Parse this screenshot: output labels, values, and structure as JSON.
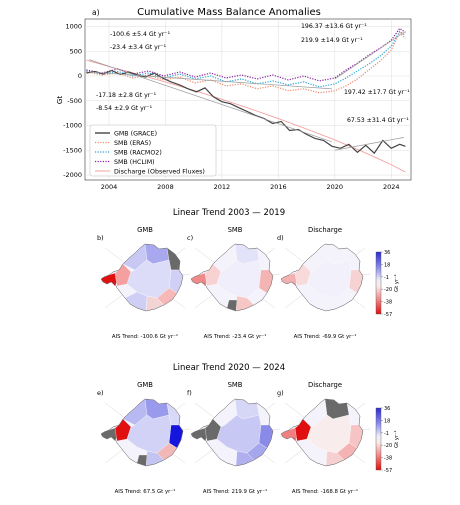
{
  "title": "Cumulative Mass Balance Anomalies",
  "panel_a_letter": "a)",
  "colors": {
    "grace": "#444444",
    "era5": "#f08a6a",
    "racmo2": "#2aa6d8",
    "hclim": "#8a1fa3",
    "discharge": "#f2a1a1",
    "cmap_pos": "#2a2ad0",
    "cmap_neg": "#e01010",
    "land_grey": "#6a6a6a"
  },
  "chart_data": {
    "type": "line",
    "title": "Cumulative Mass Balance Anomalies",
    "xlabel": "",
    "ylabel": "Gt",
    "xlim": [
      2002.3,
      2025.4
    ],
    "ylim": [
      -2100,
      1150
    ],
    "xticks": [
      2004,
      2008,
      2012,
      2016,
      2020,
      2024
    ],
    "yticks": [
      1000,
      500,
      0,
      -500,
      -1000,
      -1500,
      -2000
    ],
    "grid": true,
    "legend_position": "lower-left",
    "series": [
      {
        "key": "grace",
        "name": "GMB (GRACE)",
        "style": "solid",
        "x": [
          2002.4,
          2003.0,
          2003.6,
          2004.2,
          2004.8,
          2005.4,
          2006.0,
          2006.6,
          2007.2,
          2007.8,
          2008.4,
          2009.0,
          2009.6,
          2010.2,
          2010.8,
          2011.4,
          2012.0,
          2012.6,
          2013.2,
          2013.8,
          2014.4,
          2015.0,
          2015.6,
          2016.2,
          2016.8,
          2017.4,
          2018.0,
          2018.6,
          2019.2,
          2019.8,
          2020.4,
          2021.0,
          2021.6,
          2022.2,
          2022.8,
          2023.4,
          2024.0,
          2024.6,
          2025.0
        ],
        "y": [
          60,
          90,
          40,
          110,
          30,
          80,
          20,
          -20,
          60,
          -40,
          -120,
          -180,
          -260,
          -320,
          -240,
          -420,
          -520,
          -560,
          -640,
          -720,
          -800,
          -860,
          -960,
          -920,
          -1100,
          -1080,
          -1180,
          -1260,
          -1300,
          -1420,
          -1460,
          -1380,
          -1540,
          -1400,
          -1560,
          -1300,
          -1460,
          -1380,
          -1420
        ]
      },
      {
        "key": "era5",
        "name": "SMB (ERA5)",
        "style": "dotted",
        "x": [
          2002.4,
          2003.5,
          2004.6,
          2005.7,
          2006.8,
          2007.9,
          2009.0,
          2010.1,
          2011.2,
          2012.3,
          2013.4,
          2014.5,
          2015.6,
          2016.7,
          2017.8,
          2018.9,
          2020.0,
          2020.8,
          2021.6,
          2022.4,
          2023.2,
          2024.0,
          2024.6,
          2025.0
        ],
        "y": [
          80,
          20,
          60,
          -40,
          20,
          -80,
          -20,
          -140,
          -80,
          -200,
          -160,
          -260,
          -200,
          -300,
          -260,
          -340,
          -300,
          -200,
          -60,
          120,
          300,
          520,
          880,
          760
        ]
      },
      {
        "key": "racmo2",
        "name": "SMB (RACMO2)",
        "style": "dotted",
        "x": [
          2002.4,
          2003.5,
          2004.6,
          2005.7,
          2006.8,
          2007.9,
          2009.0,
          2010.1,
          2011.2,
          2012.3,
          2013.4,
          2014.5,
          2015.6,
          2016.7,
          2017.8,
          2018.9,
          2020.0,
          2020.8,
          2021.6,
          2022.4,
          2023.2,
          2024.0,
          2024.6,
          2025.0
        ],
        "y": [
          100,
          40,
          90,
          0,
          60,
          -40,
          40,
          -60,
          0,
          -120,
          -60,
          -160,
          -100,
          -180,
          -120,
          -220,
          -160,
          -40,
          100,
          240,
          400,
          600,
          900,
          820
        ]
      },
      {
        "key": "hclim",
        "name": "SMB (HCLIM)",
        "style": "dotted",
        "x": [
          2002.4,
          2003.5,
          2004.6,
          2005.7,
          2006.8,
          2007.9,
          2009.0,
          2010.1,
          2011.2,
          2012.3,
          2013.4,
          2014.5,
          2015.6,
          2016.7,
          2017.8,
          2018.9,
          2020.0,
          2020.8,
          2021.6,
          2022.4,
          2023.2,
          2024.0,
          2024.6,
          2025.0
        ],
        "y": [
          120,
          60,
          140,
          40,
          100,
          0,
          80,
          -20,
          60,
          -40,
          20,
          -60,
          20,
          -80,
          0,
          -100,
          -40,
          120,
          260,
          420,
          560,
          720,
          960,
          880
        ]
      },
      {
        "key": "discharge",
        "name": "Discharge (Observed Fluxes)",
        "style": "solid",
        "x": [
          2002.4,
          2004.0,
          2006.0,
          2008.0,
          2010.0,
          2012.0,
          2014.0,
          2016.0,
          2018.0,
          2020.0,
          2022.0,
          2024.0,
          2025.0
        ],
        "y": [
          320,
          190,
          40,
          -120,
          -290,
          -470,
          -660,
          -860,
          -1070,
          -1290,
          -1530,
          -1790,
          -1940
        ]
      }
    ],
    "trend_labels": [
      {
        "key": "t1",
        "text": "-100.6 ±5.4 Gt yr⁻¹",
        "color": "#111111"
      },
      {
        "key": "t2",
        "text": "-23.4 ±3.4 Gt yr⁻¹",
        "color": "#f08a6a"
      },
      {
        "key": "t3",
        "text": "-17.18 ±2.8 Gt yr⁻¹",
        "color": "#2aa6d8"
      },
      {
        "key": "t4",
        "text": "-8.54 ±2.9 Gt yr⁻¹",
        "color": "#8a1fa3"
      },
      {
        "key": "t5",
        "text": "196.37 ±13.6 Gt yr⁻¹",
        "color": "#8a1fa3"
      },
      {
        "key": "t6",
        "text": "219.9 ±14.9 Gt yr⁻¹",
        "color": "#f08a6a"
      },
      {
        "key": "t7",
        "text": "197.42 ±17.7 Gt yr⁻¹",
        "color": "#2aa6d8"
      },
      {
        "key": "t8",
        "text": "67.53 ±31.4 Gt yr⁻¹",
        "color": "#111111"
      }
    ]
  },
  "section1": {
    "title": "Linear Trend 2003 — 2019",
    "maps": [
      {
        "letter": "b)",
        "label": "GMB",
        "trend": "AIS Trend: -100.6 Gt yr⁻¹"
      },
      {
        "letter": "c)",
        "label": "SMB",
        "trend": "AIS Trend: -23.4 Gt yr⁻¹"
      },
      {
        "letter": "d)",
        "label": "Discharge",
        "trend": "AIS Trend: -69.9 Gt yr⁻¹"
      }
    ]
  },
  "section2": {
    "title": "Linear Trend 2020 — 2024",
    "maps": [
      {
        "letter": "e)",
        "label": "GMB",
        "trend": "AIS Trend: 67.5 Gt yr⁻¹"
      },
      {
        "letter": "f)",
        "label": "SMB",
        "trend": "AIS Trend: 219.9 Gt yr⁻¹"
      },
      {
        "letter": "g)",
        "label": "Discharge",
        "trend": "AIS Trend: -168.8 Gt yr⁻¹"
      }
    ]
  },
  "colorbar": {
    "ticks": [
      "36",
      "18",
      "-1",
      "-20",
      "-38",
      "-57"
    ],
    "label": "Gt yr⁻¹"
  }
}
